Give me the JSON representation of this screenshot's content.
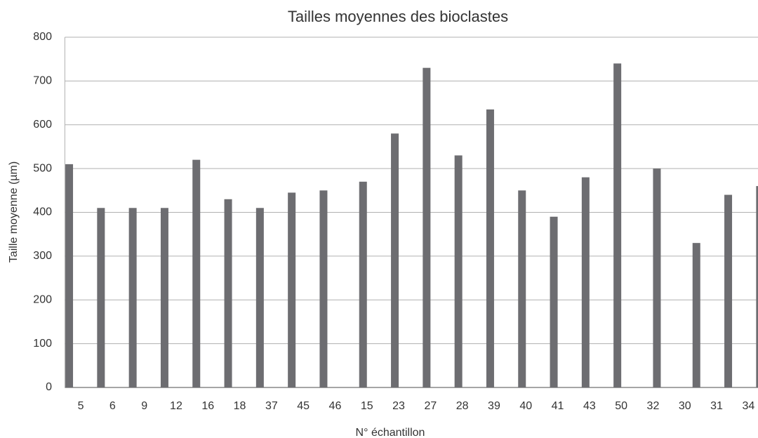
{
  "chart_data": {
    "type": "bar",
    "title": "Tailles moyennes des bioclastes",
    "xlabel": "N° échantillon",
    "ylabel": "Taille moyenne (µm)",
    "categories": [
      "5",
      "6",
      "9",
      "12",
      "16",
      "18",
      "37",
      "45",
      "46",
      "15",
      "23",
      "27",
      "28",
      "39",
      "40",
      "41",
      "43",
      "50",
      "32",
      "30",
      "31",
      "34"
    ],
    "series": [
      {
        "color": "#6d6d71",
        "values": [
          510,
          410,
          410,
          410,
          520,
          430,
          410,
          445,
          450,
          null,
          null,
          null,
          null,
          null,
          null,
          null,
          null,
          null,
          null,
          null,
          null,
          null
        ]
      },
      {
        "color": "#6d6d71",
        "values": [
          null,
          null,
          null,
          null,
          null,
          null,
          null,
          null,
          null,
          470,
          580,
          730,
          530,
          635,
          450,
          390,
          480,
          740,
          null,
          null,
          null,
          null
        ]
      },
      {
        "color": "#6d6d71",
        "values": [
          null,
          null,
          null,
          null,
          null,
          null,
          null,
          null,
          null,
          null,
          null,
          null,
          null,
          null,
          null,
          null,
          null,
          null,
          500,
          null,
          null,
          null
        ]
      },
      {
        "color": "#6d6d71",
        "values": [
          null,
          null,
          null,
          null,
          null,
          null,
          null,
          null,
          null,
          null,
          null,
          null,
          null,
          null,
          null,
          null,
          null,
          null,
          null,
          330,
          440,
          460
        ]
      }
    ],
    "ylim": [
      0,
      800
    ],
    "yticks": [
      0,
      100,
      200,
      300,
      400,
      500,
      600,
      700,
      800
    ],
    "grid": true
  }
}
